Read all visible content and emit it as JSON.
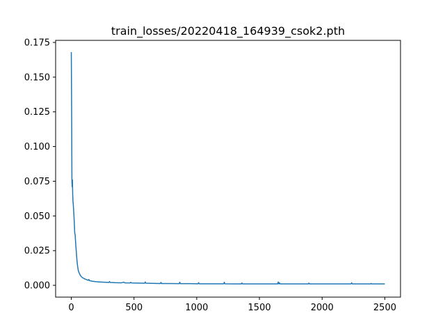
{
  "chart_data": {
    "type": "line",
    "title": "train_losses/20220418_164939_csok2.pth",
    "xlabel": "",
    "ylabel": "",
    "xlim": [
      -125,
      2625
    ],
    "ylim": [
      -0.0085,
      0.1765
    ],
    "x_ticks": [
      0,
      500,
      1000,
      1500,
      2000,
      2500
    ],
    "x_tick_labels": [
      "0",
      "500",
      "1000",
      "1500",
      "2000",
      "2500"
    ],
    "y_ticks": [
      0.0,
      0.025,
      0.05,
      0.075,
      0.1,
      0.125,
      0.15,
      0.175
    ],
    "y_tick_labels": [
      "0.000",
      "0.025",
      "0.050",
      "0.075",
      "0.100",
      "0.125",
      "0.150",
      "0.175"
    ],
    "grid": false,
    "legend": false,
    "series": [
      {
        "color": "#1f77b4",
        "points": [
          [
            0,
            0.168
          ],
          [
            3,
            0.12
          ],
          [
            5,
            0.075
          ],
          [
            7,
            0.071
          ],
          [
            9,
            0.076
          ],
          [
            11,
            0.066
          ],
          [
            13,
            0.061
          ],
          [
            16,
            0.058
          ],
          [
            20,
            0.052
          ],
          [
            24,
            0.045
          ],
          [
            27,
            0.038
          ],
          [
            31,
            0.036
          ],
          [
            35,
            0.03
          ],
          [
            40,
            0.024
          ],
          [
            45,
            0.018
          ],
          [
            50,
            0.014
          ],
          [
            55,
            0.011
          ],
          [
            60,
            0.0095
          ],
          [
            70,
            0.0075
          ],
          [
            80,
            0.0062
          ],
          [
            95,
            0.0052
          ],
          [
            110,
            0.0045
          ],
          [
            125,
            0.004
          ],
          [
            135,
            0.0036
          ],
          [
            140,
            0.0042
          ],
          [
            145,
            0.0034
          ],
          [
            170,
            0.0029
          ],
          [
            200,
            0.0026
          ],
          [
            250,
            0.0023
          ],
          [
            300,
            0.0021
          ],
          [
            305,
            0.0027
          ],
          [
            310,
            0.0021
          ],
          [
            350,
            0.0019
          ],
          [
            400,
            0.0018
          ],
          [
            420,
            0.0023
          ],
          [
            425,
            0.0018
          ],
          [
            470,
            0.0017
          ],
          [
            475,
            0.0022
          ],
          [
            480,
            0.0017
          ],
          [
            550,
            0.0016
          ],
          [
            585,
            0.0015
          ],
          [
            590,
            0.0024
          ],
          [
            595,
            0.0015
          ],
          [
            650,
            0.0014
          ],
          [
            710,
            0.0013
          ],
          [
            715,
            0.0021
          ],
          [
            720,
            0.0013
          ],
          [
            800,
            0.0013
          ],
          [
            860,
            0.0012
          ],
          [
            865,
            0.0022
          ],
          [
            870,
            0.0012
          ],
          [
            950,
            0.0012
          ],
          [
            1010,
            0.0011
          ],
          [
            1015,
            0.0019
          ],
          [
            1020,
            0.0011
          ],
          [
            1100,
            0.0011
          ],
          [
            1215,
            0.0011
          ],
          [
            1220,
            0.0022
          ],
          [
            1225,
            0.0011
          ],
          [
            1300,
            0.001
          ],
          [
            1355,
            0.001
          ],
          [
            1360,
            0.0017
          ],
          [
            1365,
            0.001
          ],
          [
            1450,
            0.001
          ],
          [
            1550,
            0.001
          ],
          [
            1645,
            0.001
          ],
          [
            1650,
            0.0024
          ],
          [
            1655,
            0.001
          ],
          [
            1660,
            0.0018
          ],
          [
            1665,
            0.001
          ],
          [
            1750,
            0.001
          ],
          [
            1890,
            0.001
          ],
          [
            1895,
            0.0016
          ],
          [
            1900,
            0.001
          ],
          [
            2000,
            0.001
          ],
          [
            2100,
            0.001
          ],
          [
            2230,
            0.001
          ],
          [
            2235,
            0.0018
          ],
          [
            2240,
            0.001
          ],
          [
            2300,
            0.001
          ],
          [
            2385,
            0.001
          ],
          [
            2390,
            0.0014
          ],
          [
            2395,
            0.001
          ],
          [
            2450,
            0.001
          ],
          [
            2500,
            0.001
          ]
        ]
      }
    ]
  }
}
